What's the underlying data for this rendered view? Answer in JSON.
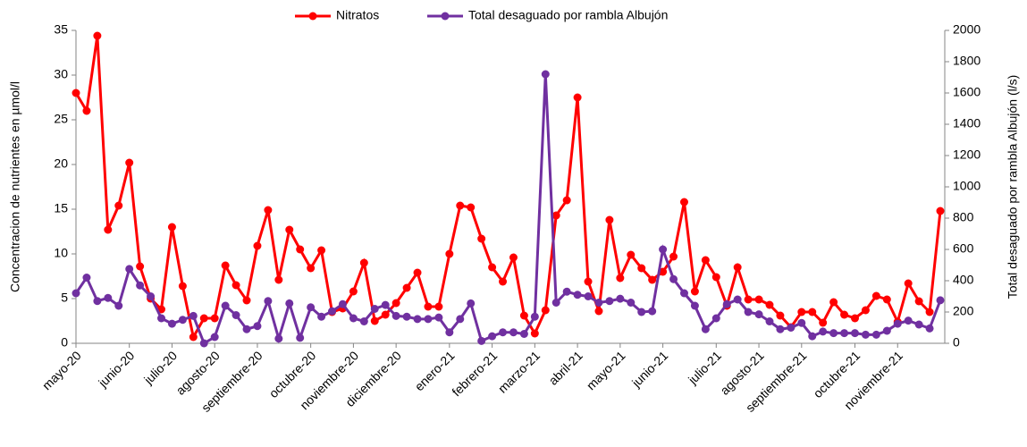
{
  "chart_data": {
    "type": "line",
    "categories": [
      "mayo-20",
      null,
      null,
      null,
      null,
      "junio-20",
      null,
      null,
      null,
      "julio-20",
      null,
      null,
      null,
      "agosto-20",
      null,
      null,
      null,
      "septiembre-20",
      null,
      null,
      null,
      null,
      "octubre-20",
      null,
      null,
      null,
      "noviembre-20",
      null,
      null,
      null,
      "diciembre-20",
      null,
      null,
      null,
      null,
      "enero-21",
      null,
      null,
      null,
      "febrero-21",
      null,
      null,
      null,
      "marzo-21",
      null,
      null,
      null,
      "abril-21",
      null,
      null,
      null,
      "mayo-21",
      null,
      null,
      null,
      "junio-21",
      null,
      null,
      null,
      null,
      "julio-21",
      null,
      null,
      null,
      "agosto-21",
      null,
      null,
      null,
      "septiembre-21",
      null,
      null,
      null,
      null,
      "octubre-21",
      null,
      null,
      null,
      "noviembre-21",
      null,
      null,
      null,
      null
    ],
    "series": [
      {
        "name": "Nitratos",
        "color": "#ff0000",
        "values": [
          28,
          26,
          34.4,
          12.7,
          15.4,
          20.2,
          8.6,
          5,
          3.8,
          13,
          6.4,
          0.7,
          2.8,
          2.8,
          8.7,
          6.5,
          4.8,
          10.9,
          14.9,
          7.1,
          12.7,
          10.5,
          8.4,
          10.4,
          3.5,
          3.9,
          5.8,
          9,
          2.5,
          3.2,
          4.5,
          6.2,
          7.9,
          4.1,
          4.1,
          10,
          15.4,
          15.2,
          11.7,
          8.5,
          6.9,
          9.6,
          3.1,
          1.1,
          3.7,
          14.3,
          16,
          27.5,
          6.9,
          3.6,
          13.8,
          7.3,
          9.9,
          8.4,
          7.1,
          8,
          9.7,
          15.8,
          5.8,
          9.3,
          7.4,
          4.2,
          8.5,
          4.9,
          4.9,
          4.3,
          3.1,
          1.8,
          3.5,
          3.5,
          2.3,
          4.6,
          3.2,
          2.8,
          3.7,
          5.3,
          4.9,
          2.4,
          6.7,
          4.7,
          3.5,
          14.8
        ]
      },
      {
        "name": "Total desaguado por rambla Albujón",
        "color": "#7030a0",
        "axis": "y2",
        "values": [
          320,
          420,
          270,
          290,
          240,
          475,
          370,
          300,
          160,
          125,
          150,
          175,
          0,
          40,
          240,
          180,
          90,
          110,
          270,
          30,
          255,
          35,
          230,
          170,
          205,
          250,
          160,
          140,
          220,
          245,
          175,
          170,
          155,
          155,
          165,
          70,
          155,
          255,
          15,
          45,
          70,
          70,
          60,
          170,
          1720,
          260,
          330,
          310,
          300,
          260,
          270,
          285,
          260,
          200,
          205,
          600,
          410,
          320,
          240,
          90,
          160,
          250,
          280,
          200,
          185,
          140,
          90,
          100,
          130,
          45,
          75,
          65,
          65,
          65,
          55,
          55,
          80,
          125,
          145,
          120,
          95,
          275
        ]
      }
    ],
    "y_label": "Concentracion de nutrientes  en µmol/l",
    "y2_label": "Total desaguado por rambla Albujón (l/s)",
    "ylim": [
      0,
      35
    ],
    "yticks": [
      0,
      5,
      10,
      15,
      20,
      25,
      30,
      35
    ],
    "y2lim": [
      0,
      2000
    ],
    "y2ticks": [
      0,
      200,
      400,
      600,
      800,
      1000,
      1200,
      1400,
      1600,
      1800,
      2000
    ],
    "legend": "top",
    "grid": false
  }
}
